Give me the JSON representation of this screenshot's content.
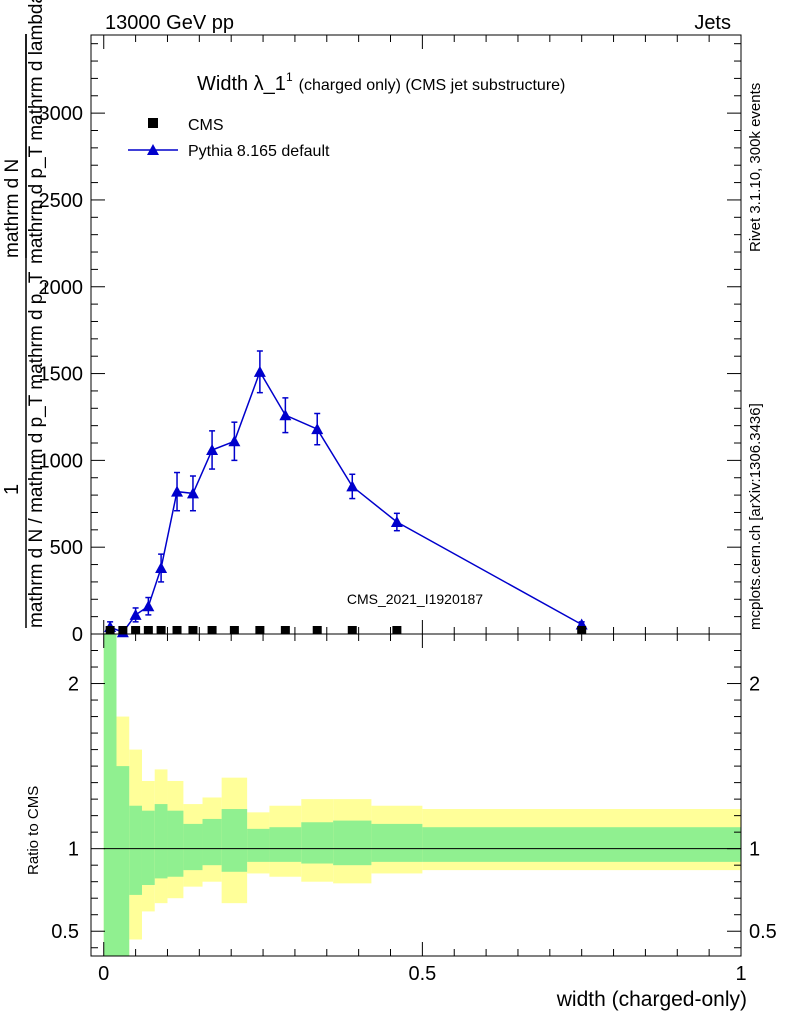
{
  "header": {
    "left": "13000 GeV pp",
    "right": "Jets"
  },
  "side": {
    "right_top": "Rivet 3.1.10,  300k events",
    "right_bottom": "mcplots.cern.ch [arXiv:1306.3436]"
  },
  "chart_data": [
    {
      "type": "line",
      "title_main": "Width λ_1",
      "title_sup": "1",
      "title_rest": "(charged only) (CMS jet substructure)",
      "ylabel_numerator": "1",
      "ylabel_denominator": "mathrm d N / mathrm d p_T mathrm d p_T",
      "ylabel_numerator_right": "mathrm d N",
      "ylabel_denominator_right": "mathrm d p_T mathrm d lambda",
      "watermark": "CMS_2021_I1920187",
      "xlim": [
        -0.02,
        1.0
      ],
      "ylim": [
        0,
        3450
      ],
      "yticks": [
        0,
        500,
        1000,
        1500,
        2000,
        2500,
        3000
      ],
      "ytick_labels": [
        "0",
        "500",
        "1000",
        "1500",
        "2000",
        "2500",
        "3000"
      ],
      "legend": [
        {
          "name": "CMS",
          "marker": "square",
          "color": "#000000"
        },
        {
          "name": "Pythia 8.165 default",
          "marker": "triangle",
          "color": "#0000cc"
        }
      ],
      "series": [
        {
          "name": "CMS",
          "x": [
            0.01,
            0.03,
            0.05,
            0.07,
            0.09,
            0.115,
            0.14,
            0.17,
            0.205,
            0.245,
            0.285,
            0.335,
            0.39,
            0.46,
            0.75
          ],
          "y": [
            0,
            0,
            0,
            0,
            0,
            0,
            0,
            0,
            0,
            0,
            0,
            0,
            0,
            0,
            0
          ]
        },
        {
          "name": "Pythia 8.165 default",
          "x": [
            0.01,
            0.03,
            0.05,
            0.07,
            0.09,
            0.115,
            0.14,
            0.17,
            0.205,
            0.245,
            0.285,
            0.335,
            0.39,
            0.46,
            0.75
          ],
          "y": [
            40,
            10,
            110,
            160,
            380,
            820,
            810,
            1060,
            1110,
            1510,
            1260,
            1180,
            850,
            645,
            55
          ],
          "err": [
            30,
            20,
            40,
            50,
            80,
            110,
            100,
            110,
            110,
            120,
            100,
            90,
            70,
            50,
            15
          ]
        }
      ]
    },
    {
      "type": "area",
      "ylabel": "Ratio to CMS",
      "xlabel": "width (charged-only)",
      "xlim": [
        -0.02,
        1.0
      ],
      "ylim": [
        0.35,
        2.3
      ],
      "yticks": [
        0.5,
        1,
        2
      ],
      "ytick_labels": [
        "0.5",
        "1",
        "2"
      ],
      "xticks": [
        0,
        0.5,
        1
      ],
      "xtick_labels": [
        "0",
        "0.5",
        "1"
      ],
      "bands": [
        {
          "x0": 0.0,
          "x1": 0.02,
          "green": [
            0.3,
            2.4
          ],
          "yellow": [
            0.3,
            2.4
          ]
        },
        {
          "x0": 0.02,
          "x1": 0.04,
          "green": [
            0.35,
            1.5
          ],
          "yellow": [
            0.35,
            1.8
          ]
        },
        {
          "x0": 0.04,
          "x1": 0.06,
          "green": [
            0.72,
            1.26
          ],
          "yellow": [
            0.45,
            1.6
          ]
        },
        {
          "x0": 0.06,
          "x1": 0.08,
          "green": [
            0.78,
            1.23
          ],
          "yellow": [
            0.62,
            1.41
          ]
        },
        {
          "x0": 0.08,
          "x1": 0.1,
          "green": [
            0.82,
            1.27
          ],
          "yellow": [
            0.67,
            1.48
          ]
        },
        {
          "x0": 0.1,
          "x1": 0.125,
          "green": [
            0.83,
            1.23
          ],
          "yellow": [
            0.7,
            1.41
          ]
        },
        {
          "x0": 0.125,
          "x1": 0.155,
          "green": [
            0.87,
            1.15
          ],
          "yellow": [
            0.77,
            1.27
          ]
        },
        {
          "x0": 0.155,
          "x1": 0.185,
          "green": [
            0.9,
            1.18
          ],
          "yellow": [
            0.8,
            1.31
          ]
        },
        {
          "x0": 0.185,
          "x1": 0.225,
          "green": [
            0.86,
            1.24
          ],
          "yellow": [
            0.67,
            1.43
          ]
        },
        {
          "x0": 0.225,
          "x1": 0.26,
          "green": [
            0.92,
            1.12
          ],
          "yellow": [
            0.85,
            1.22
          ]
        },
        {
          "x0": 0.26,
          "x1": 0.31,
          "green": [
            0.92,
            1.13
          ],
          "yellow": [
            0.83,
            1.26
          ]
        },
        {
          "x0": 0.31,
          "x1": 0.36,
          "green": [
            0.91,
            1.16
          ],
          "yellow": [
            0.8,
            1.3
          ]
        },
        {
          "x0": 0.36,
          "x1": 0.42,
          "green": [
            0.9,
            1.17
          ],
          "yellow": [
            0.79,
            1.3
          ]
        },
        {
          "x0": 0.42,
          "x1": 0.5,
          "green": [
            0.92,
            1.15
          ],
          "yellow": [
            0.85,
            1.26
          ]
        },
        {
          "x0": 0.5,
          "x1": 1.0,
          "green": [
            0.92,
            1.13
          ],
          "yellow": [
            0.87,
            1.24
          ]
        }
      ],
      "ref_line": 1
    }
  ],
  "colors": {
    "band_green": "#90f090",
    "band_yellow": "#ffff99",
    "pythia": "#0000cc",
    "cms": "#000000",
    "watermark": "#9a9a9a",
    "side_text": "#808080"
  }
}
